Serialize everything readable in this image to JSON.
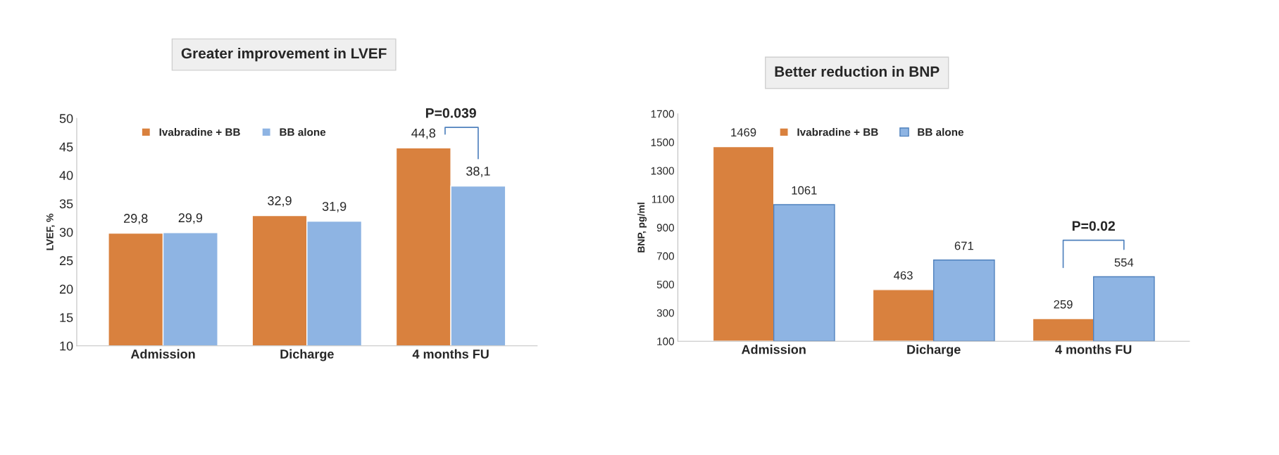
{
  "chart_data": [
    {
      "type": "bar",
      "title": "Greater improvement in LVEF",
      "ylabel": "LVEF, %",
      "categories": [
        "Admission",
        "Dicharge",
        "4 months FU"
      ],
      "series": [
        {
          "name": "Ivabradine + BB",
          "color": "#d9813e",
          "values": [
            29.8,
            32.9,
            44.8
          ],
          "value_labels": [
            "29,8",
            "32,9",
            "44,8"
          ]
        },
        {
          "name": "BB alone",
          "color": "#8eb4e3",
          "values": [
            29.9,
            31.9,
            38.1
          ],
          "value_labels": [
            "29,9",
            "31,9",
            "38,1"
          ]
        }
      ],
      "ylim": [
        10,
        50
      ],
      "yticks": [
        10,
        15,
        20,
        25,
        30,
        35,
        40,
        45,
        50
      ],
      "legend": "top left",
      "grid": false,
      "annotations": [
        "P=0.039"
      ]
    },
    {
      "type": "bar",
      "title": "Better reduction in BNP",
      "ylabel": "BNP, pg/ml",
      "categories": [
        "Admission",
        "Dicharge",
        "4 months FU"
      ],
      "series": [
        {
          "name": "Ivabradine + BB",
          "color": "#d9813e",
          "values": [
            1469,
            463,
            259
          ]
        },
        {
          "name": "BB alone",
          "color": "#8eb4e3",
          "values": [
            1061,
            671,
            554
          ]
        }
      ],
      "ylim": [
        100,
        1700
      ],
      "yticks": [
        100,
        300,
        500,
        700,
        900,
        1100,
        1300,
        1500,
        1700
      ],
      "legend": "top left",
      "grid": false,
      "data_labels": true,
      "annotations": [
        "P=0.02"
      ]
    }
  ]
}
